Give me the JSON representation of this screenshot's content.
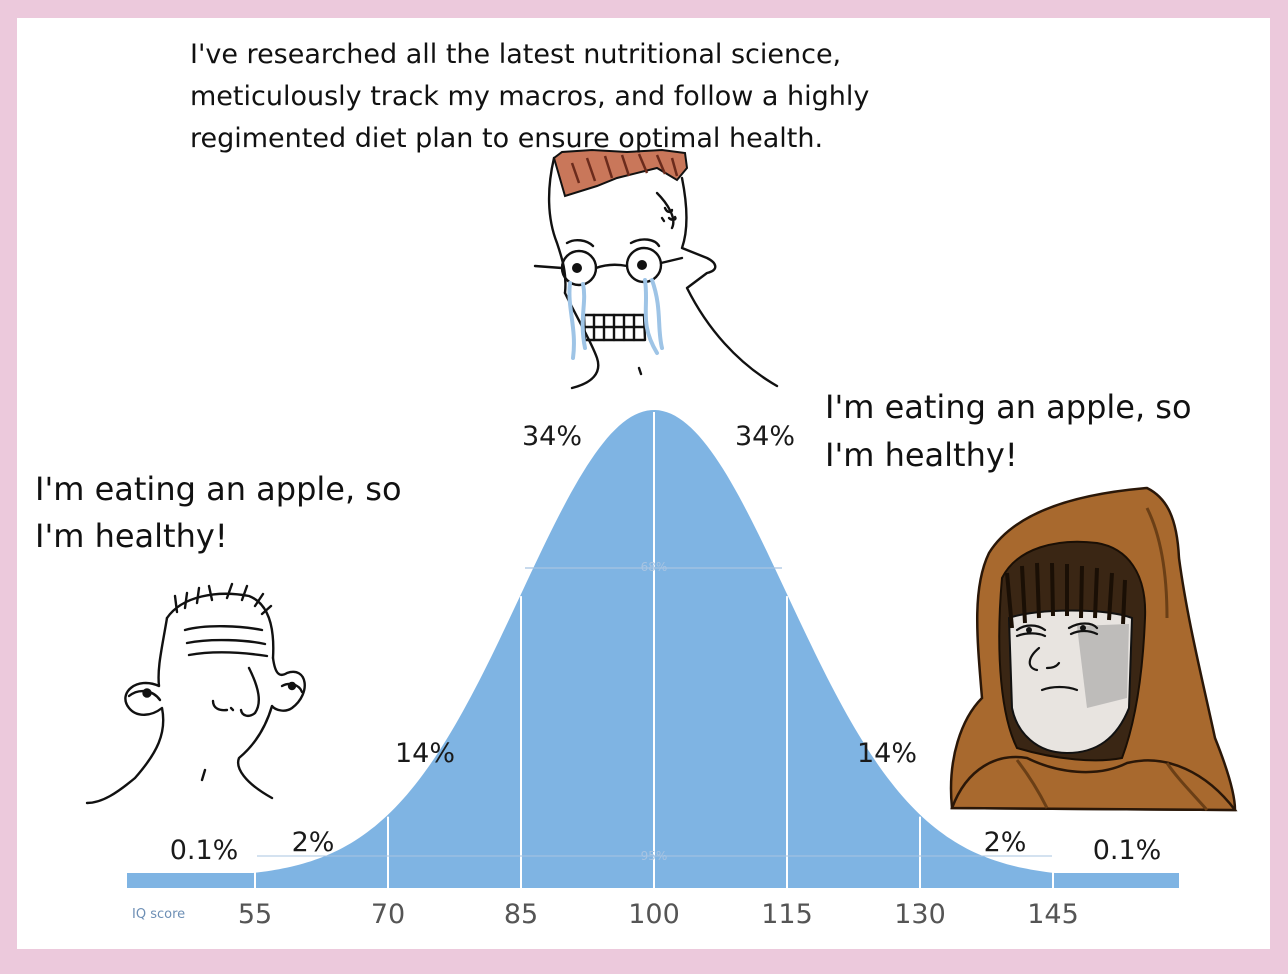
{
  "captions": {
    "top": [
      "I've researched all the latest nutritional science,",
      "meticulously track my macros, and follow a highly",
      "regimented diet plan to ensure optimal health."
    ],
    "left": [
      "I'm eating an apple, so",
      "I'm healthy!"
    ],
    "right": [
      "I'm eating an apple, so",
      "I'm healthy!"
    ]
  },
  "bell_curve": {
    "axis_title": "IQ score",
    "axis_ticks": [
      "55",
      "70",
      "85",
      "100",
      "115",
      "130",
      "145"
    ],
    "percentages": {
      "far_left": "0.1%",
      "left_tail": "2%",
      "left_mid": "14%",
      "left_center": "34%",
      "right_center": "34%",
      "right_mid": "14%",
      "right_tail": "2%",
      "far_right": "0.1%"
    },
    "inner_labels": {
      "sd1": "68%",
      "sd2": "95%"
    },
    "fill_color": "#7fb4e3"
  },
  "characters": {
    "left": "simple-wojak",
    "center": "crying-glasses-wojak",
    "right": "hooded-wojak"
  }
}
